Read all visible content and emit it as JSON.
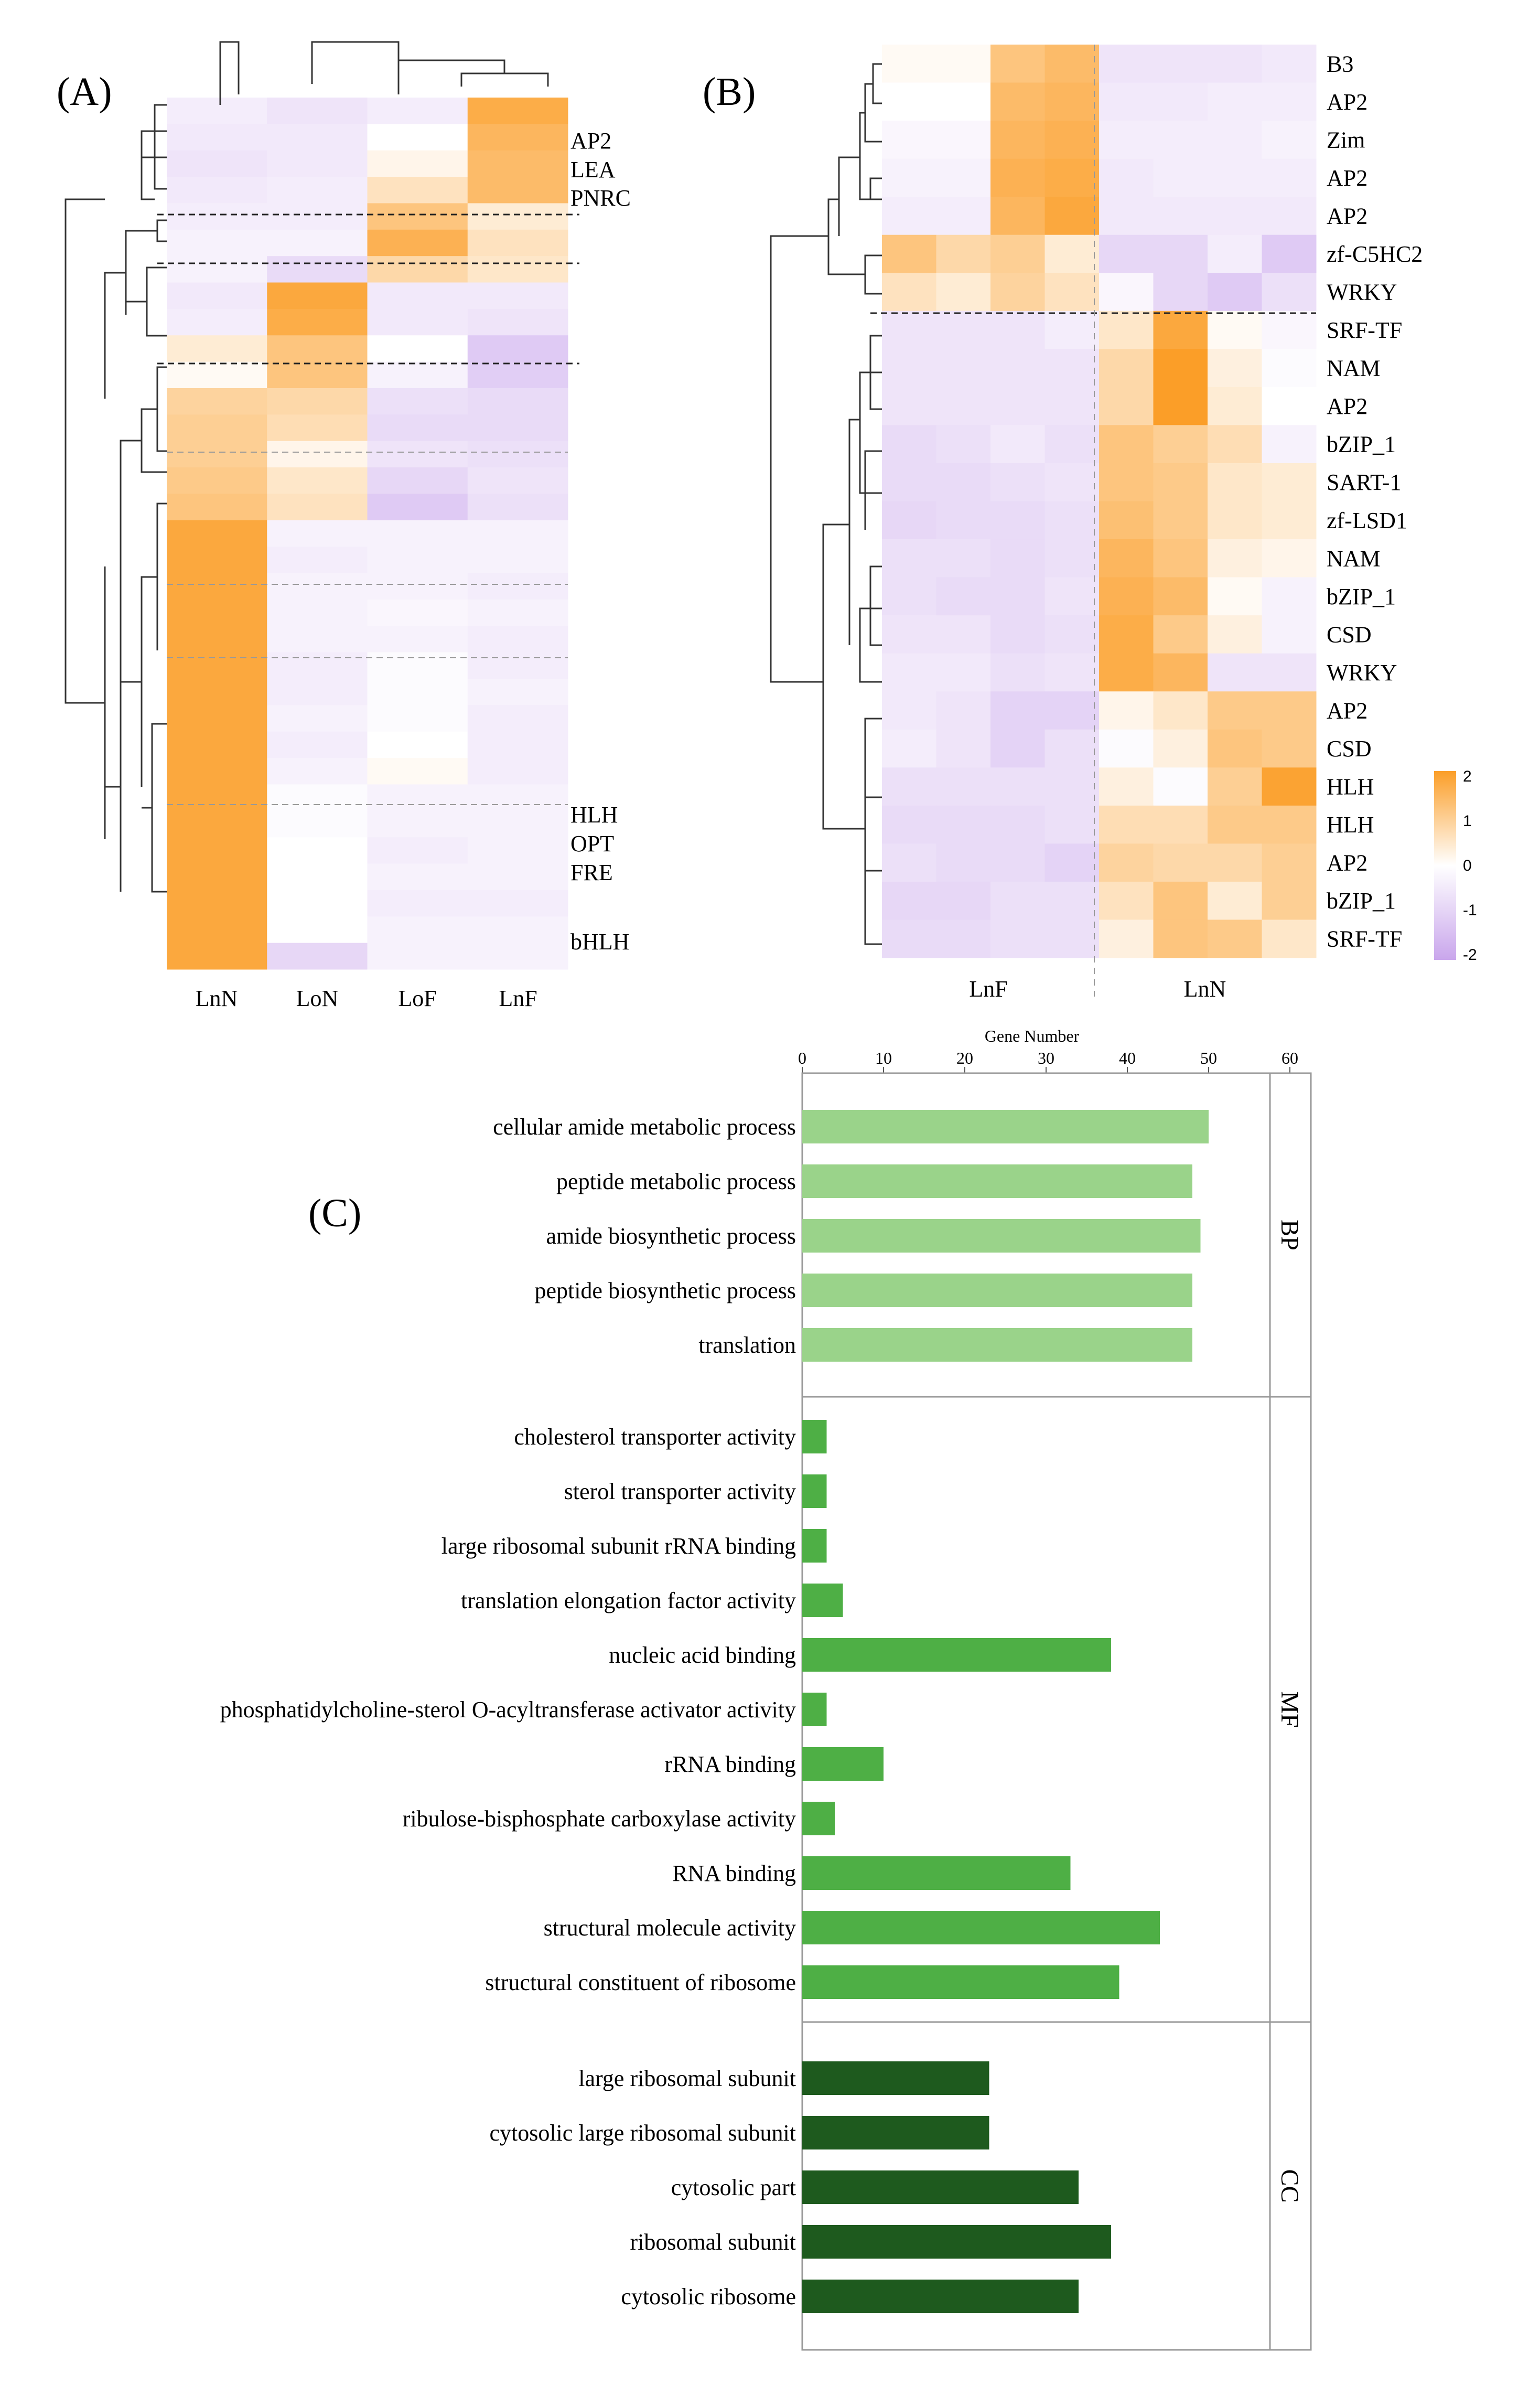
{
  "figure": {
    "panel_labels": [
      "(A)",
      "(B)",
      "(C)"
    ]
  },
  "colors": {
    "low": "#c9a6ec",
    "mid": "#ffffff",
    "high": "#fb9e28",
    "bp": "#9ad38a",
    "mf": "#4eaf45",
    "cc": "#1e5a1e",
    "dendrogram": "#333333",
    "frame": "#999999"
  },
  "chart_data": [
    {
      "id": "A",
      "type": "heatmap",
      "title": "(A)",
      "columns": [
        "LnN",
        "LoN",
        "LoF",
        "LnF"
      ],
      "row_labels": [
        "AP2",
        "LEA",
        "PNRC",
        "HLH",
        "OPT",
        "FRE",
        "bHLH"
      ],
      "scale_range": [
        -2,
        2
      ],
      "values": [
        [
          -0.4,
          -0.6,
          -0.4,
          1.7
        ],
        [
          -0.5,
          -0.5,
          0.0,
          1.5
        ],
        [
          -0.6,
          -0.5,
          0.2,
          1.4
        ],
        [
          -0.5,
          -0.4,
          0.6,
          1.4
        ],
        [
          -0.4,
          -0.4,
          1.2,
          0.4
        ],
        [
          -0.3,
          -0.3,
          1.6,
          0.6
        ],
        [
          -0.3,
          -0.8,
          0.8,
          0.5
        ],
        [
          -0.5,
          1.8,
          -0.5,
          -0.5
        ],
        [
          -0.4,
          1.7,
          -0.5,
          -0.6
        ],
        [
          0.4,
          1.2,
          0.0,
          -1.2
        ],
        [
          0.1,
          1.2,
          -0.3,
          -1.1
        ],
        [
          0.9,
          0.8,
          -0.7,
          -0.8
        ],
        [
          1.0,
          0.7,
          -0.8,
          -0.8
        ],
        [
          1.0,
          0.2,
          -0.6,
          -0.7
        ],
        [
          1.1,
          0.5,
          -0.9,
          -0.6
        ],
        [
          1.2,
          0.6,
          -1.2,
          -0.7
        ],
        [
          1.8,
          -0.3,
          -0.3,
          -0.3
        ],
        [
          1.8,
          -0.4,
          -0.3,
          -0.3
        ],
        [
          1.8,
          -0.3,
          -0.3,
          -0.4
        ],
        [
          1.8,
          -0.3,
          -0.2,
          -0.3
        ],
        [
          1.8,
          -0.3,
          -0.3,
          -0.4
        ],
        [
          1.8,
          -0.4,
          -0.1,
          -0.4
        ],
        [
          1.8,
          -0.4,
          -0.1,
          -0.3
        ],
        [
          1.8,
          -0.3,
          -0.1,
          -0.4
        ],
        [
          1.8,
          -0.4,
          0.0,
          -0.4
        ],
        [
          1.8,
          -0.3,
          0.1,
          -0.4
        ],
        [
          1.8,
          -0.1,
          -0.3,
          -0.3
        ],
        [
          1.8,
          -0.1,
          -0.3,
          -0.3
        ],
        [
          1.8,
          0.0,
          -0.4,
          -0.3
        ],
        [
          1.8,
          0.0,
          -0.3,
          -0.3
        ],
        [
          1.8,
          0.0,
          -0.4,
          -0.4
        ],
        [
          1.8,
          0.0,
          -0.3,
          -0.3
        ],
        [
          1.8,
          -0.9,
          -0.3,
          -0.3
        ]
      ]
    },
    {
      "id": "B",
      "type": "heatmap",
      "title": "(B)",
      "column_groups": [
        "LnF",
        "LnN"
      ],
      "row_labels": [
        "B3",
        "AP2",
        "Zim",
        "AP2",
        "AP2",
        "zf-C5HC2",
        "WRKY",
        "SRF-TF",
        "NAM",
        "AP2",
        "bZIP_1",
        "SART-1",
        "zf-LSD1",
        "NAM",
        "bZIP_1",
        "CSD",
        "WRKY",
        "AP2",
        "CSD",
        "HLH",
        "HLH",
        "AP2",
        "bZIP_1",
        "SRF-TF"
      ],
      "scale_range": [
        -2,
        2
      ],
      "legend_ticks": [
        "2",
        "1",
        "0",
        "-1",
        "-2"
      ],
      "values": [
        [
          0.1,
          0.1,
          1.2,
          1.4,
          -0.6,
          -0.6,
          -0.6,
          -0.5
        ],
        [
          0.0,
          0.0,
          1.4,
          1.5,
          -0.5,
          -0.5,
          -0.4,
          -0.4
        ],
        [
          -0.2,
          -0.2,
          1.5,
          1.6,
          -0.4,
          -0.4,
          -0.4,
          -0.3
        ],
        [
          -0.3,
          -0.3,
          1.6,
          1.7,
          -0.5,
          -0.4,
          -0.4,
          -0.4
        ],
        [
          -0.4,
          -0.4,
          1.5,
          1.8,
          -0.5,
          -0.5,
          -0.5,
          -0.5
        ],
        [
          1.2,
          0.8,
          1.0,
          0.4,
          -0.9,
          -0.9,
          -0.4,
          -1.2
        ],
        [
          0.6,
          0.4,
          0.9,
          0.6,
          -0.2,
          -0.9,
          -1.2,
          -0.7
        ],
        [
          -0.6,
          -0.6,
          -0.6,
          -0.4,
          0.5,
          1.8,
          0.1,
          -0.2
        ],
        [
          -0.6,
          -0.6,
          -0.6,
          -0.6,
          0.8,
          2.0,
          0.3,
          -0.1
        ],
        [
          -0.6,
          -0.6,
          -0.6,
          -0.6,
          0.8,
          2.0,
          0.4,
          0.0
        ],
        [
          -0.8,
          -0.7,
          -0.5,
          -0.7,
          1.2,
          1.0,
          0.7,
          -0.3
        ],
        [
          -0.8,
          -0.8,
          -0.7,
          -0.6,
          1.2,
          1.1,
          0.5,
          0.4
        ],
        [
          -0.9,
          -0.8,
          -0.8,
          -0.7,
          1.3,
          1.1,
          0.5,
          0.4
        ],
        [
          -0.7,
          -0.7,
          -0.8,
          -0.7,
          1.5,
          1.2,
          0.3,
          0.2
        ],
        [
          -0.7,
          -0.8,
          -0.8,
          -0.6,
          1.6,
          1.4,
          0.1,
          -0.3
        ],
        [
          -0.6,
          -0.6,
          -0.8,
          -0.7,
          1.7,
          1.1,
          0.3,
          -0.3
        ],
        [
          -0.5,
          -0.5,
          -0.7,
          -0.6,
          1.7,
          1.5,
          -0.6,
          -0.6
        ],
        [
          -0.5,
          -0.6,
          -1.0,
          -1.0,
          0.2,
          0.5,
          1.1,
          1.1
        ],
        [
          -0.4,
          -0.6,
          -1.0,
          -0.7,
          -0.1,
          0.3,
          1.2,
          1.1
        ],
        [
          -0.7,
          -0.7,
          -0.7,
          -0.7,
          0.3,
          -0.1,
          1.0,
          1.9
        ],
        [
          -0.8,
          -0.8,
          -0.8,
          -0.7,
          0.7,
          0.7,
          1.1,
          1.1
        ],
        [
          -0.7,
          -0.8,
          -0.8,
          -1.0,
          0.9,
          0.8,
          0.8,
          1.0
        ],
        [
          -0.9,
          -0.9,
          -0.7,
          -0.7,
          0.6,
          1.2,
          0.4,
          1.0
        ],
        [
          -0.8,
          -0.8,
          -0.7,
          -0.7,
          0.3,
          1.2,
          1.1,
          0.5
        ]
      ]
    },
    {
      "id": "C",
      "type": "bar",
      "orientation": "horizontal",
      "title": "(C)",
      "xlabel": "Gene Number",
      "xlim": [
        0,
        60
      ],
      "xticks": [
        0,
        10,
        20,
        30,
        40,
        50,
        60
      ],
      "series": [
        {
          "name": "BP",
          "categories": [
            "cellular amide metabolic process",
            "peptide metabolic process",
            "amide biosynthetic process",
            "peptide biosynthetic process",
            "translation"
          ],
          "values": [
            50,
            48,
            49,
            48,
            48
          ]
        },
        {
          "name": "MF",
          "categories": [
            "cholesterol transporter activity",
            "sterol transporter activity",
            "large ribosomal subunit rRNA binding",
            "translation elongation factor activity",
            "nucleic acid binding",
            "phosphatidylcholine-sterol O-acyltransferase activator activity",
            "rRNA binding",
            "ribulose-bisphosphate carboxylase activity",
            "RNA binding",
            "structural molecule activity",
            "structural constituent of ribosome"
          ],
          "values": [
            3,
            3,
            3,
            5,
            38,
            3,
            10,
            4,
            33,
            44,
            39
          ]
        },
        {
          "name": "CC",
          "categories": [
            "large ribosomal subunit",
            "cytosolic large ribosomal subunit",
            "cytosolic part",
            "ribosomal subunit",
            "cytosolic ribosome"
          ],
          "values": [
            23,
            23,
            34,
            38,
            34
          ]
        }
      ]
    }
  ]
}
